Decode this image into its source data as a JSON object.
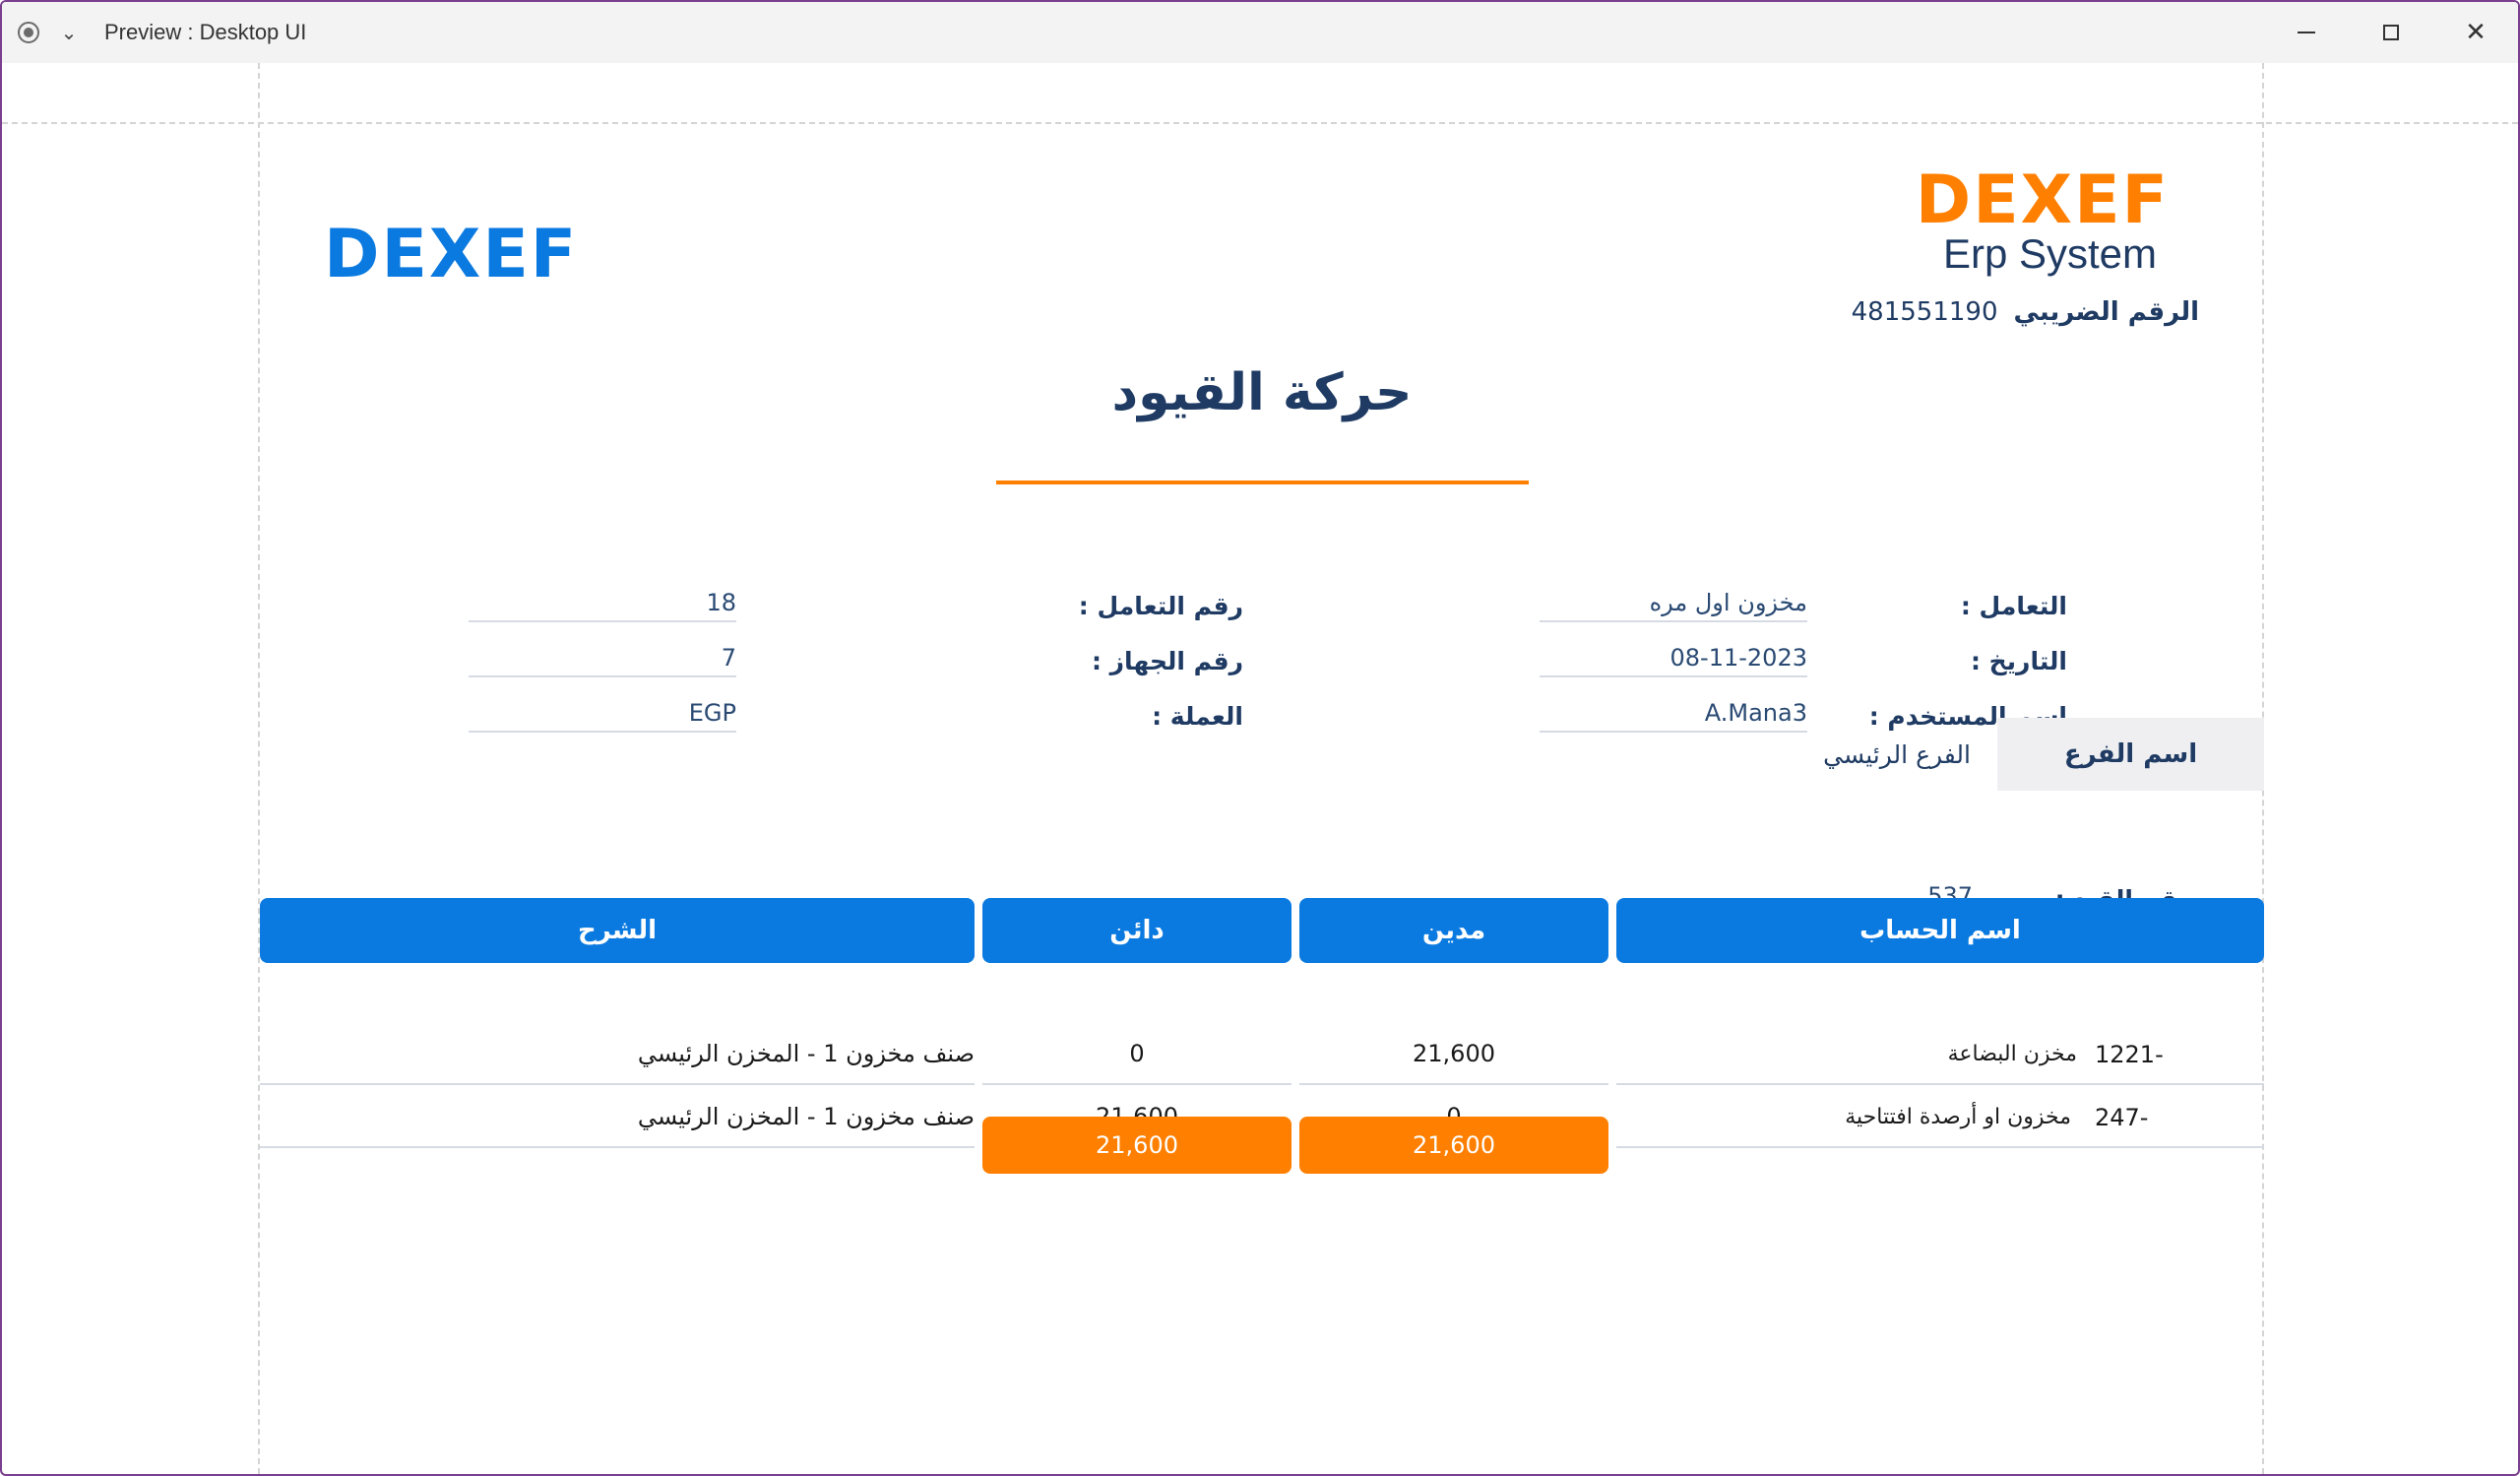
{
  "window": {
    "title": "Preview : Desktop UI"
  },
  "header": {
    "logo_left": "DEXEF",
    "logo_right": "DEXEF",
    "subtitle": "Erp System",
    "tax_label": "الرقم الضريبي",
    "tax_value": "481551190"
  },
  "report": {
    "title": "حركة القيود"
  },
  "info": {
    "transaction_label": "التعامل :",
    "transaction_value": "مخزون اول مره",
    "date_label": "التاريخ :",
    "date_value": "08-11-2023",
    "username_label": "اسم المستخدم :",
    "username_value": "A.Mana3",
    "transaction_no_label": "رقم التعامل :",
    "transaction_no_value": "18",
    "device_no_label": "رقم الجهاز :",
    "device_no_value": "7",
    "currency_label": "العملة :",
    "currency_value": "EGP",
    "branch_label": "اسم الفرع",
    "branch_value": "الفرع الرئيسي",
    "entry_no_label": "رقم القيد :",
    "entry_no_value": "537"
  },
  "table": {
    "headers": {
      "account": "اسم الحساب",
      "debit": "مدين",
      "credit": "دائن",
      "description": "الشرح"
    },
    "rows": [
      {
        "code": "1221-",
        "account": "مخزن البضاعة",
        "debit": "21,600",
        "credit": "0",
        "description": "صنف مخزون 1 - المخزن الرئيسي"
      },
      {
        "code": "247-",
        "account": "مخزون او أرصدة افتتاحية",
        "debit": "0",
        "credit": "21,600",
        "description": "صنف مخزون 1 - المخزن الرئيسي"
      }
    ],
    "totals": {
      "debit": "21,600",
      "credit": "21,600"
    }
  }
}
